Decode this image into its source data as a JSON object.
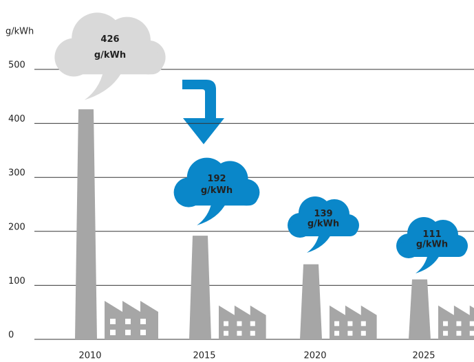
{
  "chart_data": {
    "type": "bar",
    "y_label": "g/kWh",
    "categories": [
      "2010",
      "2015",
      "2020",
      "2025"
    ],
    "values": [
      426,
      192,
      139,
      111
    ],
    "value_labels": [
      "426 g/kWh",
      "192 g/kWh",
      "139 g/kWh",
      "111 g/kWh"
    ],
    "color": "#a6a6a6",
    "label_colors": [
      "#d9d9d9",
      "#0a87c9",
      "#0a87c9",
      "#0a87c9"
    ],
    "label_text_colors": [
      "#8a8a8a",
      "#ffffff",
      "#ffffff",
      "#ffffff"
    ],
    "ylim": [
      0,
      500
    ],
    "yticks": [
      0,
      100,
      200,
      300,
      400,
      500
    ],
    "grid": true
  }
}
